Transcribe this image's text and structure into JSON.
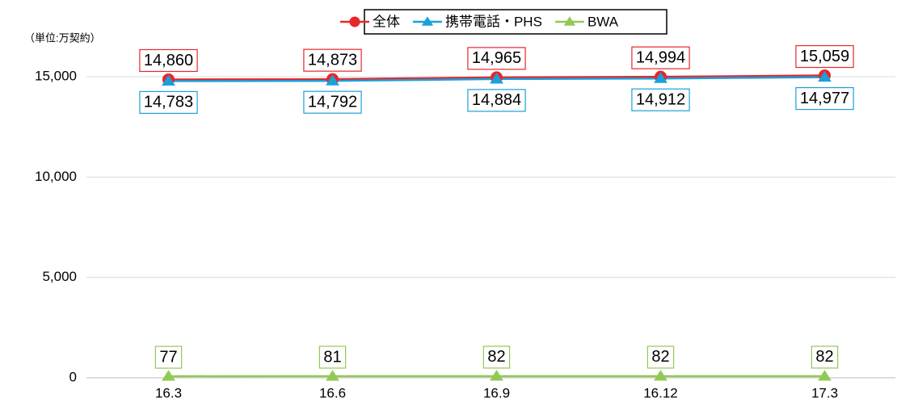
{
  "chart_data": {
    "type": "line",
    "unit_label": "（単位:万契約）",
    "categories": [
      "16.3",
      "16.6",
      "16.9",
      "16.12",
      "17.3"
    ],
    "series": [
      {
        "name": "全体",
        "color": "#e8262a",
        "marker": "circle",
        "values": [
          14860,
          14873,
          14965,
          14994,
          15059
        ],
        "value_labels": [
          "14,860",
          "14,873",
          "14,965",
          "14,994",
          "15,059"
        ]
      },
      {
        "name": "携帯電話・PHS",
        "color": "#1aa0db",
        "marker": "triangle",
        "values": [
          14783,
          14792,
          14884,
          14912,
          14977
        ],
        "value_labels": [
          "14,783",
          "14,792",
          "14,884",
          "14,912",
          "14,977"
        ]
      },
      {
        "name": "BWA",
        "color": "#92c955",
        "marker": "triangle",
        "values": [
          77,
          81,
          82,
          82,
          82
        ],
        "value_labels": [
          "77",
          "81",
          "82",
          "82",
          "82"
        ]
      }
    ],
    "ylim": [
      0,
      15000
    ],
    "yticks": [
      0,
      {
        "value": 5000,
        "label": "5,000"
      },
      {
        "value": 10000,
        "label": "10,000"
      },
      {
        "value": 15000,
        "label": "15,000"
      }
    ],
    "grid": true,
    "legend": "top"
  }
}
